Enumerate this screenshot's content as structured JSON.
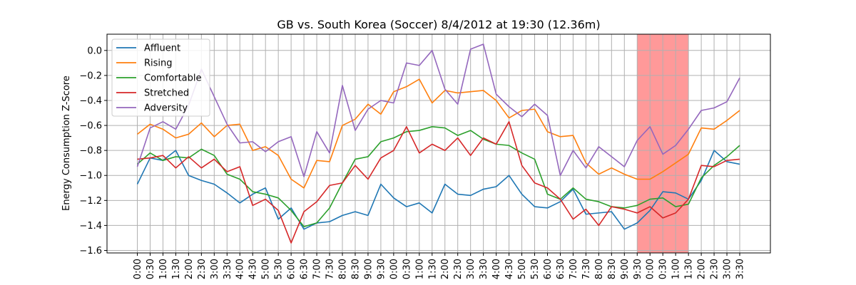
{
  "chart_data": {
    "type": "line",
    "title": "GB vs. South Korea (Soccer) 8/4/2012 at 19:30 (12.36m)",
    "xlabel": "",
    "ylabel": "Energy Consumption Z-Score",
    "ylim": [
      -1.62,
      0.13
    ],
    "yticks": [
      0.0,
      -0.2,
      -0.4,
      -0.6,
      -0.8,
      -1.0,
      -1.2,
      -1.4,
      -1.6
    ],
    "ytick_labels": [
      "0.0",
      "−0.2",
      "−0.4",
      "−0.6",
      "−0.8",
      "−1.0",
      "−1.2",
      "−1.4",
      "−1.6"
    ],
    "grid": true,
    "legend_position": "top-left",
    "x_labels": [
      "0:00",
      "0:30",
      "1:00",
      "1:30",
      "2:00",
      "2:30",
      "3:00",
      "3:30",
      "4:00",
      "4:30",
      "5:00",
      "5:30",
      "6:00",
      "6:30",
      "7:00",
      "7:30",
      "8:00",
      "8:30",
      "9:00",
      "9:30",
      "0:00",
      "0:30",
      "1:00",
      "1:30",
      "2:00",
      "2:30",
      "3:00",
      "3:30",
      "4:00",
      "4:30",
      "5:00",
      "5:30",
      "6:00",
      "6:30",
      "7:00",
      "7:30",
      "8:00",
      "8:30",
      "9:00",
      "9:30",
      "0:00",
      "0:30",
      "1:00",
      "1:30",
      "2:00",
      "2:30",
      "3:00",
      "3:30"
    ],
    "highlight": {
      "start_index": 39,
      "end_index": 43,
      "color": "#ff9999"
    },
    "series": [
      {
        "name": "Affluent",
        "color": "#1f77b4",
        "values": [
          -1.07,
          -0.86,
          -0.88,
          -0.8,
          -1.0,
          -1.04,
          -1.07,
          -1.14,
          -1.22,
          -1.15,
          -1.1,
          -1.35,
          -1.26,
          -1.43,
          -1.38,
          -1.37,
          -1.32,
          -1.29,
          -1.32,
          -1.07,
          -1.18,
          -1.25,
          -1.22,
          -1.3,
          -1.07,
          -1.15,
          -1.16,
          -1.11,
          -1.09,
          -1.0,
          -1.15,
          -1.25,
          -1.26,
          -1.21,
          -1.11,
          -1.31,
          -1.3,
          -1.29,
          -1.43,
          -1.38,
          -1.28,
          -1.13,
          -1.14,
          -1.19,
          -1.04,
          -0.8,
          -0.89,
          -0.91
        ]
      },
      {
        "name": "Rising",
        "color": "#ff7f0e",
        "values": [
          -0.67,
          -0.59,
          -0.63,
          -0.7,
          -0.67,
          -0.58,
          -0.69,
          -0.6,
          -0.59,
          -0.8,
          -0.77,
          -0.84,
          -1.03,
          -1.1,
          -0.88,
          -0.89,
          -0.6,
          -0.55,
          -0.43,
          -0.51,
          -0.33,
          -0.29,
          -0.23,
          -0.42,
          -0.32,
          -0.34,
          -0.33,
          -0.32,
          -0.4,
          -0.54,
          -0.48,
          -0.47,
          -0.65,
          -0.69,
          -0.68,
          -0.9,
          -0.99,
          -0.94,
          -0.99,
          -1.03,
          -1.03,
          -0.97,
          -0.9,
          -0.83,
          -0.62,
          -0.63,
          -0.56,
          -0.48
        ]
      },
      {
        "name": "Comfortable",
        "color": "#2ca02c",
        "values": [
          -0.91,
          -0.82,
          -0.88,
          -0.85,
          -0.86,
          -0.79,
          -0.84,
          -0.99,
          -1.03,
          -1.13,
          -1.15,
          -1.18,
          -1.28,
          -1.41,
          -1.38,
          -1.26,
          -1.06,
          -0.87,
          -0.85,
          -0.73,
          -0.7,
          -0.65,
          -0.64,
          -0.61,
          -0.62,
          -0.68,
          -0.64,
          -0.71,
          -0.75,
          -0.76,
          -0.82,
          -0.87,
          -1.15,
          -1.19,
          -1.1,
          -1.19,
          -1.21,
          -1.25,
          -1.26,
          -1.24,
          -1.19,
          -1.18,
          -1.25,
          -1.23,
          -1.02,
          -0.92,
          -0.85,
          -0.76
        ]
      },
      {
        "name": "Stretched",
        "color": "#d62728",
        "values": [
          -0.87,
          -0.86,
          -0.84,
          -0.94,
          -0.85,
          -0.94,
          -0.87,
          -0.97,
          -0.93,
          -1.24,
          -1.19,
          -1.28,
          -1.54,
          -1.29,
          -1.21,
          -1.08,
          -1.06,
          -0.92,
          -1.03,
          -0.86,
          -0.8,
          -0.61,
          -0.82,
          -0.75,
          -0.8,
          -0.7,
          -0.84,
          -0.7,
          -0.75,
          -0.57,
          -0.92,
          -1.06,
          -1.1,
          -1.19,
          -1.35,
          -1.27,
          -1.4,
          -1.25,
          -1.27,
          -1.3,
          -1.25,
          -1.34,
          -1.3,
          -1.19,
          -0.92,
          -0.93,
          -0.88,
          -0.87
        ]
      },
      {
        "name": "Adversity",
        "color": "#9467bd",
        "values": [
          -0.93,
          -0.62,
          -0.57,
          -0.63,
          -0.44,
          -0.15,
          -0.37,
          -0.59,
          -0.74,
          -0.73,
          -0.81,
          -0.73,
          -0.69,
          -1.01,
          -0.65,
          -0.82,
          -0.28,
          -0.64,
          -0.47,
          -0.4,
          -0.42,
          -0.1,
          -0.12,
          -0.0,
          -0.31,
          -0.43,
          0.01,
          0.05,
          -0.35,
          -0.45,
          -0.53,
          -0.43,
          -0.52,
          -1.0,
          -0.8,
          -0.94,
          -0.77,
          -0.85,
          -0.93,
          -0.72,
          -0.61,
          -0.83,
          -0.76,
          -0.63,
          -0.48,
          -0.46,
          -0.41,
          -0.22
        ]
      }
    ]
  }
}
